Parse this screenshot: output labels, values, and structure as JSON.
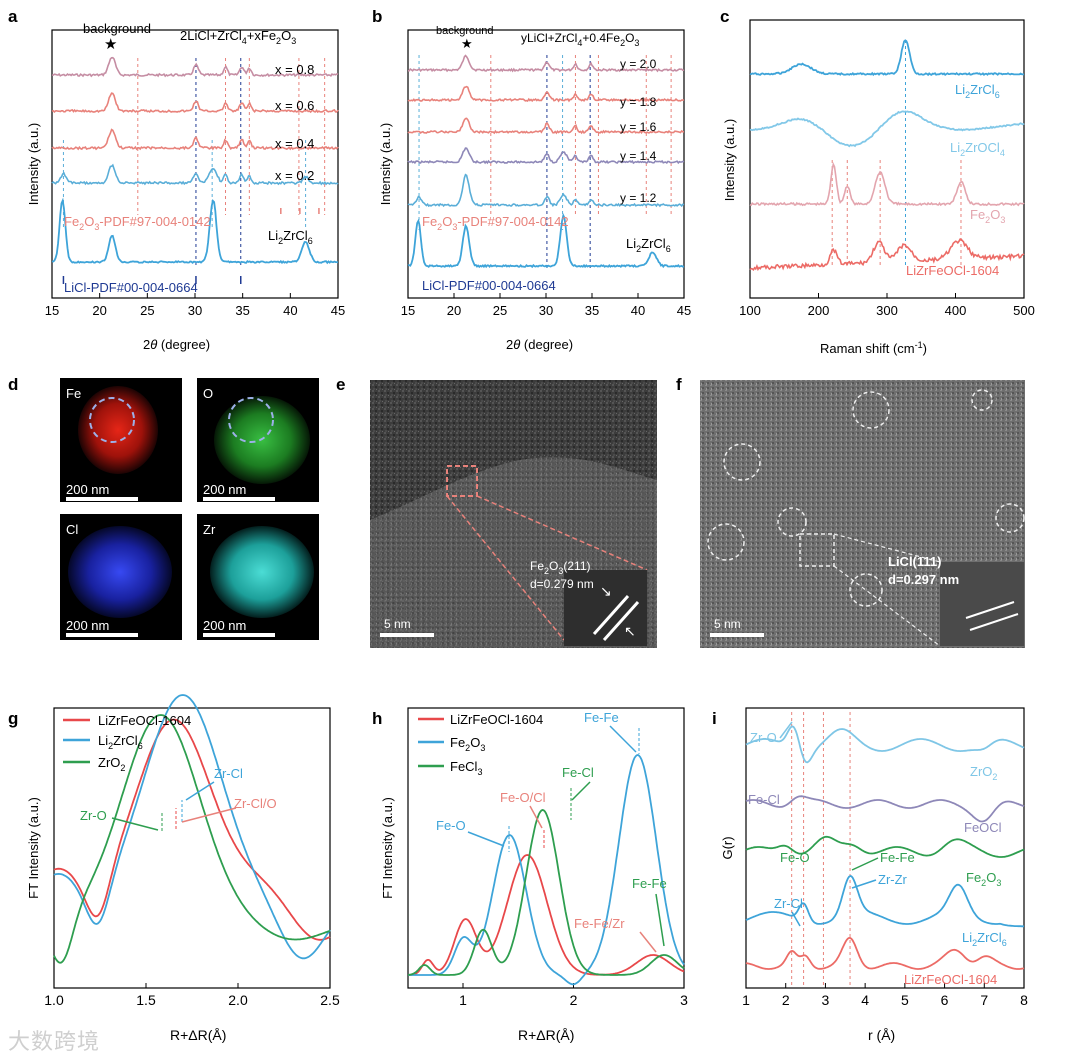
{
  "chart_data": [
    {
      "panel": "a",
      "type": "line",
      "title": "2LiCl+ZrCl4+xFe2O3",
      "xlabel": "2θ (degree)",
      "ylabel": "Intensity (a.u.)",
      "xlim": [
        15,
        45
      ],
      "xticks": [
        "15",
        "20",
        "25",
        "30",
        "35",
        "40",
        "45"
      ],
      "series": [
        {
          "name": "x = 0.8",
          "color": "#c58da3"
        },
        {
          "name": "x = 0.6",
          "color": "#e8827b"
        },
        {
          "name": "x = 0.4",
          "color": "#e8827b"
        },
        {
          "name": "x = 0.2",
          "color": "#5aaed8"
        },
        {
          "name": "Li2ZrCl6",
          "color": "#3ea4d9"
        }
      ],
      "annotations": [
        "background",
        "Fe2O3-PDF#97-004-0142",
        "LiCl-PDF#00-004-0664",
        "Li2ZrCl6"
      ]
    },
    {
      "panel": "b",
      "type": "line",
      "title": "yLiCl+ZrCl4+0.4Fe2O3",
      "xlabel": "2θ (degree)",
      "ylabel": "Intensity (a.u.)",
      "xlim": [
        15,
        45
      ],
      "xticks": [
        "15",
        "20",
        "25",
        "30",
        "35",
        "40",
        "45"
      ],
      "series": [
        {
          "name": "y = 2.0",
          "color": "#c58da3"
        },
        {
          "name": "y = 1.8",
          "color": "#e8827b"
        },
        {
          "name": "y = 1.6",
          "color": "#e8827b"
        },
        {
          "name": "y = 1.4",
          "color": "#8e88b8"
        },
        {
          "name": "y = 1.2",
          "color": "#5aaed8"
        },
        {
          "name": "Li2ZrCl6",
          "color": "#3ea4d9"
        }
      ],
      "annotations": [
        "background",
        "Fe2O3-PDF#97-004-0142",
        "LiCl-PDF#00-004-0664",
        "Li2ZrCl6"
      ]
    },
    {
      "panel": "c",
      "type": "line",
      "xlabel": "Raman shift (cm-1)",
      "ylabel": "Intensity (a.u.)",
      "xlim": [
        100,
        500
      ],
      "xticks": [
        "100",
        "200",
        "300",
        "400",
        "500"
      ],
      "series": [
        {
          "name": "Li2ZrCl6",
          "color": "#3ea4d9"
        },
        {
          "name": "Li2ZrOCl4",
          "color": "#82c8e8"
        },
        {
          "name": "Fe2O3",
          "color": "#e3a5ae"
        },
        {
          "name": "LiZrFeOCl-1604",
          "color": "#ec6b66"
        }
      ]
    },
    {
      "panel": "g",
      "type": "line",
      "xlabel": "R+ΔR(Å)",
      "ylabel": "FT Intensity (a.u.)",
      "xlim": [
        1.0,
        2.5
      ],
      "xticks": [
        "1.0",
        "1.5",
        "2.0",
        "2.5"
      ],
      "series": [
        {
          "name": "LiZrFeOCl-1604",
          "color": "#e8484a",
          "peak_x": 1.65
        },
        {
          "name": "Li2ZrCl6",
          "color": "#3ea4d9",
          "peak_x": 1.69
        },
        {
          "name": "ZrO2",
          "color": "#2e9e4f",
          "peak_x": 1.58
        }
      ],
      "annotations": [
        "Zr-Cl",
        "Zr-Cl/O",
        "Zr-O"
      ]
    },
    {
      "panel": "h",
      "type": "line",
      "xlabel": "R+ΔR(Å)",
      "ylabel": "FT Intensity (a.u.)",
      "xlim": [
        0.5,
        3.0
      ],
      "xticks": [
        "1",
        "2",
        "3"
      ],
      "series": [
        {
          "name": "LiZrFeOCl-1604",
          "color": "#e8484a"
        },
        {
          "name": "Fe2O3",
          "color": "#3ea4d9"
        },
        {
          "name": "FeCl3",
          "color": "#2e9e4f"
        }
      ],
      "annotations": [
        "Fe-Fe",
        "Fe-O/Cl",
        "Fe-Cl",
        "Fe-O",
        "Fe-Fe/Zr",
        "Fe-Fe"
      ]
    },
    {
      "panel": "i",
      "type": "line",
      "xlabel": "r (Å)",
      "ylabel": "G(r)",
      "xlim": [
        1,
        8
      ],
      "xticks": [
        "1",
        "2",
        "3",
        "4",
        "5",
        "6",
        "7",
        "8"
      ],
      "series": [
        {
          "name": "ZrO2",
          "color": "#7fc6e6"
        },
        {
          "name": "FeOCl",
          "color": "#8e88b8"
        },
        {
          "name": "Fe2O3",
          "color": "#2e9e4f"
        },
        {
          "name": "Li2ZrCl6",
          "color": "#3ea4d9"
        },
        {
          "name": "LiZrFeOCl-1604",
          "color": "#ec6b66"
        }
      ],
      "annotations": [
        "Zr-O",
        "Fe-Cl",
        "Fe-O",
        "Fe-Fe",
        "Zr-Cl",
        "Zr-Zr"
      ]
    }
  ],
  "panels": {
    "a": {
      "label": "a",
      "title": "2LiCl+ZrCl",
      "title_sub": "4",
      "title_rest": "+xFe",
      "title_sub2": "2",
      "title_end": "O",
      "title_sub3": "3",
      "background": "background",
      "labels": [
        "x = 0.8",
        "x = 0.6",
        "x = 0.4",
        "x = 0.2"
      ],
      "ref1": "Fe",
      "ref1b": "2",
      "ref1c": "O",
      "ref1d": "3",
      "ref1e": "-PDF#97-004-0142",
      "ref2": "LiCl-PDF#00-004-0664",
      "ref3": "Li",
      "ref3b": "2",
      "ref3c": "ZrCl",
      "ref3d": "6",
      "xlabel_a": "2",
      "xlabel_b": "θ",
      "xlabel_c": " (degree)",
      "ylabel": "Intensity (a.u.)"
    },
    "b": {
      "label": "b",
      "title": "yLiCl+ZrCl",
      "title_sub": "4",
      "title_rest": "+0.4Fe",
      "title_sub2": "2",
      "title_end": "O",
      "title_sub3": "3",
      "background": "background",
      "labels": [
        "y = 2.0",
        "y = 1.8",
        "y = 1.6",
        "y = 1.4",
        "y = 1.2"
      ],
      "ref1": "Fe",
      "ref1b": "2",
      "ref1c": "O",
      "ref1d": "3",
      "ref1e": "-PDF#97-004-0142",
      "ref2": "LiCl-PDF#00-004-0664",
      "ref3": "Li",
      "ref3b": "2",
      "ref3c": "ZrCl",
      "ref3d": "6",
      "xlabel_a": "2",
      "xlabel_b": "θ",
      "xlabel_c": " (degree)",
      "ylabel": "Intensity (a.u.)"
    },
    "c": {
      "label": "c",
      "xlabel": "Raman shift (cm",
      "xlabel_sup": "-1",
      "xlabel_end": ")",
      "ylabel": "Intensity (a.u.)",
      "l1": "Li",
      "l1b": "2",
      "l1c": "ZrCl",
      "l1d": "6",
      "l2": "Li",
      "l2b": "2",
      "l2c": "ZrOCl",
      "l2d": "4",
      "l3": "Fe",
      "l3b": "2",
      "l3c": "O",
      "l3d": "3",
      "l4": "LiZrFeOCl-1604"
    },
    "d": {
      "label": "d",
      "maps": [
        "Fe",
        "O",
        "Cl",
        "Zr"
      ],
      "scale": "200 nm"
    },
    "e": {
      "label": "e",
      "plane": "Fe",
      "plane_b": "2",
      "plane_c": "O",
      "plane_d": "3",
      "plane_e": "(211)",
      "dspacing": "d=0.279 nm",
      "scale": "5 nm"
    },
    "f": {
      "label": "f",
      "plane": "LiCl(111)",
      "dspacing": "d=0.297 nm",
      "scale": "5 nm"
    },
    "g": {
      "label": "g",
      "leg1": "LiZrFeOCl-1604",
      "leg2": "Li",
      "leg2b": "2",
      "leg2c": "ZrCl",
      "leg2d": "6",
      "leg3": "ZrO",
      "leg3b": "2",
      "ann1": "Zr-Cl",
      "ann2": "Zr-Cl/O",
      "ann3": "Zr-O",
      "xlabel": "R+ΔR(Å)",
      "ylabel": "FT Intensity (a.u.)"
    },
    "h": {
      "label": "h",
      "leg1": "LiZrFeOCl-1604",
      "leg2": "Fe",
      "leg2b": "2",
      "leg2c": "O",
      "leg2d": "3",
      "leg3": "FeCl",
      "leg3b": "3",
      "ann1": "Fe-Fe",
      "ann2": "Fe-O/Cl",
      "ann3": "Fe-Cl",
      "ann4": "Fe-O",
      "ann5": "Fe-Fe/Zr",
      "ann6": "Fe-Fe",
      "xlabel": "R+ΔR(Å)",
      "ylabel": "FT Intensity (a.u.)"
    },
    "i": {
      "label": "i",
      "ann1": "Zr-O",
      "ann2": "Fe-Cl",
      "ann3": "Fe-O",
      "ann4": "Fe-Fe",
      "ann5": "Zr-Cl",
      "ann6": "Zr-Zr",
      "s1": "ZrO",
      "s1b": "2",
      "s2": "FeOCl",
      "s3": "Fe",
      "s3b": "2",
      "s3c": "O",
      "s3d": "3",
      "s4": "Li",
      "s4b": "2",
      "s4c": "ZrCl",
      "s4d": "6",
      "s5": "LiZrFeOCl-1604",
      "xlabel": "r (Å)",
      "ylabel": "G(r)"
    }
  },
  "watermark": "大数跨境",
  "colors": {
    "pink": "#e8827b",
    "blue": "#3ea4d9",
    "navy": "#1f3a93",
    "green": "#2e9e4f",
    "red": "#e8484a",
    "purple": "#8e88b8"
  }
}
